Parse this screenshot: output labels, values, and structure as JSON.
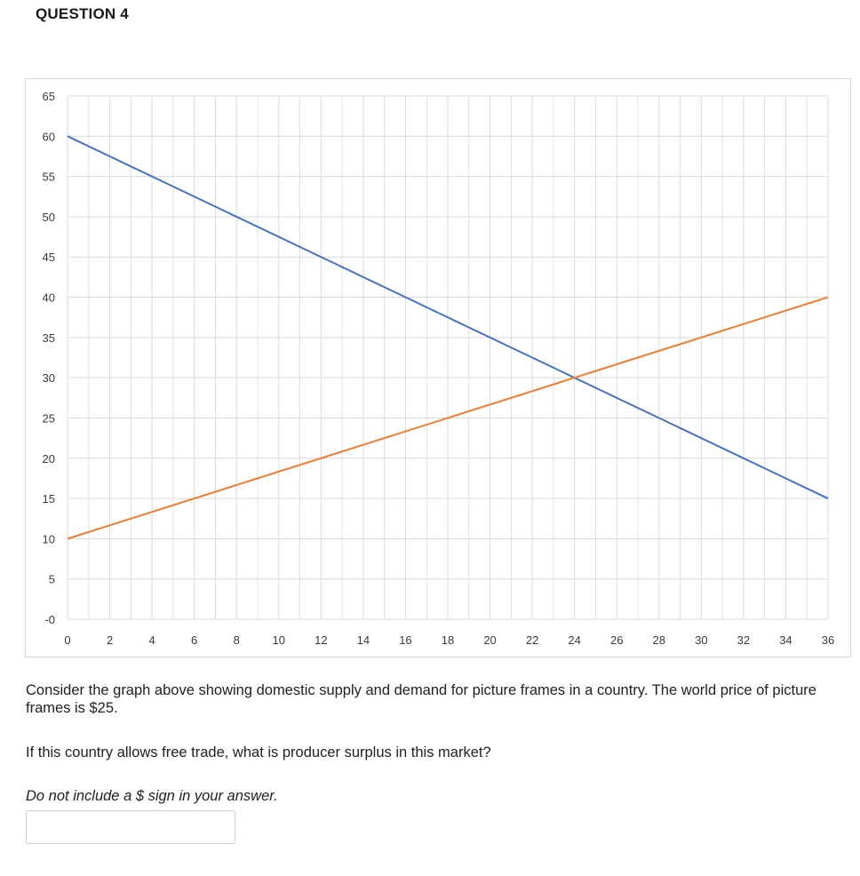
{
  "question": {
    "title": "QUESTION 4",
    "prompt_line1": "Consider the graph above showing domestic supply and demand for picture frames in a country.  The world price of picture frames is $25.",
    "prompt_line2": "If this country allows free trade, what is producer surplus in this market?",
    "note": "Do not include a $ sign in your answer.",
    "answer_value": ""
  },
  "colors": {
    "demand": "#4472C4",
    "supply": "#ED7D31",
    "grid": "#d9d9d9"
  },
  "chart_data": {
    "type": "line",
    "title": "",
    "xlabel": "",
    "ylabel": "",
    "xlim": [
      0,
      36
    ],
    "ylim": [
      0,
      65
    ],
    "x_ticks": [
      0,
      2,
      4,
      6,
      8,
      10,
      12,
      14,
      16,
      18,
      20,
      22,
      24,
      26,
      28,
      30,
      32,
      34,
      36
    ],
    "x_tick_labels": [
      "0",
      "2",
      "4",
      "6",
      "8",
      "10",
      "12",
      "14",
      "16",
      "18",
      "20",
      "22",
      "24",
      "26",
      "28",
      "30",
      "32",
      "34",
      "36"
    ],
    "y_ticks": [
      0,
      5,
      10,
      15,
      20,
      25,
      30,
      35,
      40,
      45,
      50,
      55,
      60,
      65
    ],
    "y_tick_labels": [
      "-0",
      "5",
      "10",
      "15",
      "20",
      "25",
      "30",
      "35",
      "40",
      "45",
      "50",
      "55",
      "60",
      "65"
    ],
    "grid": true,
    "legend": "none",
    "series": [
      {
        "color": "#4472C4",
        "x": [
          0,
          36
        ],
        "y": [
          60,
          15
        ]
      },
      {
        "color": "#ED7D31",
        "x": [
          0,
          36
        ],
        "y": [
          10,
          40
        ]
      }
    ]
  }
}
